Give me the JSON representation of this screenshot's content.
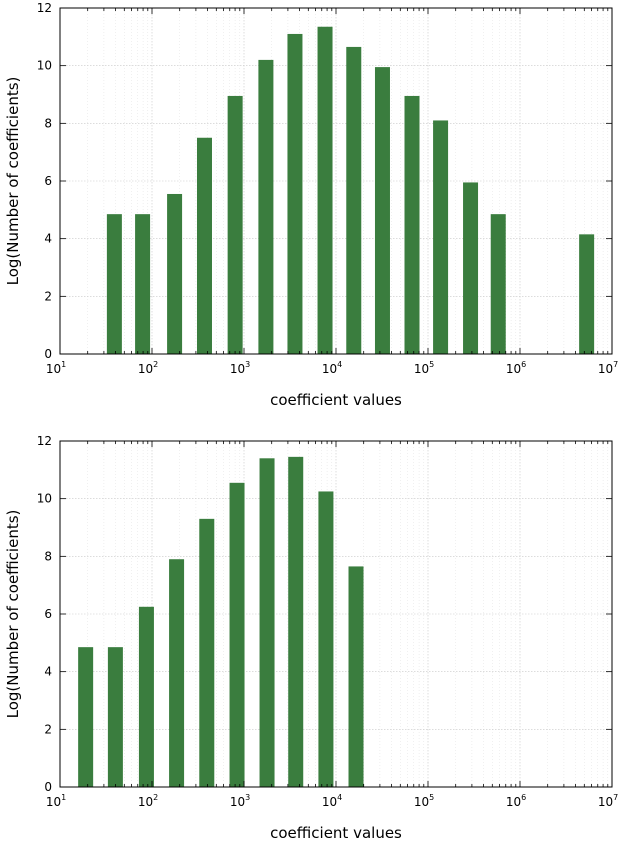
{
  "chart_data": [
    {
      "type": "bar",
      "xscale": "log",
      "xlabel": "coefficient values",
      "ylabel": "Log(Number of coefficients)",
      "xlim": [
        10,
        10000000
      ],
      "ylim": [
        0,
        12
      ],
      "grid": true,
      "xticks": [
        {
          "base": "10",
          "exp": "1"
        },
        {
          "base": "10",
          "exp": "2"
        },
        {
          "base": "10",
          "exp": "3"
        },
        {
          "base": "10",
          "exp": "4"
        },
        {
          "base": "10",
          "exp": "5"
        },
        {
          "base": "10",
          "exp": "6"
        },
        {
          "base": "10",
          "exp": "7"
        }
      ],
      "yticks": [
        "0",
        "2",
        "4",
        "6",
        "8",
        "10",
        "12"
      ],
      "bar_color": "#3a7d3e",
      "x": [
        39,
        79,
        176,
        372,
        801,
        1730,
        3580,
        7600,
        15600,
        32000,
        67000,
        137000,
        290000,
        580000,
        5300000
      ],
      "values": [
        4.85,
        4.85,
        5.55,
        7.5,
        8.95,
        10.2,
        11.1,
        11.35,
        10.65,
        9.95,
        8.95,
        8.1,
        5.95,
        4.85,
        4.15
      ]
    },
    {
      "type": "bar",
      "xscale": "log",
      "xlabel": "coefficient values",
      "ylabel": "Log(Number of coefficients)",
      "xlim": [
        10,
        10000000
      ],
      "ylim": [
        0,
        12
      ],
      "grid": true,
      "xticks": [
        {
          "base": "10",
          "exp": "1"
        },
        {
          "base": "10",
          "exp": "2"
        },
        {
          "base": "10",
          "exp": "3"
        },
        {
          "base": "10",
          "exp": "4"
        },
        {
          "base": "10",
          "exp": "5"
        },
        {
          "base": "10",
          "exp": "6"
        },
        {
          "base": "10",
          "exp": "7"
        }
      ],
      "yticks": [
        "0",
        "2",
        "4",
        "6",
        "8",
        "10",
        "12"
      ],
      "bar_color": "#3a7d3e",
      "x": [
        19,
        40,
        87,
        185,
        394,
        840,
        1780,
        3650,
        7770,
        16500
      ],
      "values": [
        4.85,
        4.85,
        6.25,
        7.9,
        9.3,
        10.55,
        11.4,
        11.45,
        10.25,
        7.65
      ]
    }
  ]
}
